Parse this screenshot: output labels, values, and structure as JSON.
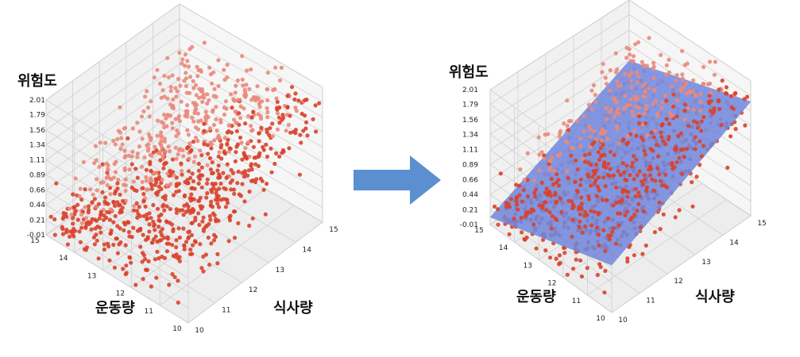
{
  "colors": {
    "point": "#d9412b",
    "point_light": "#e98a7c",
    "plane": "#6f86e2",
    "plane_grid": "#8a8fa8",
    "arrow": "#5b8fcf",
    "pane": "#f1f1f1",
    "grid": "#d0d0d0"
  },
  "arrow_icon": "right-arrow-icon",
  "chart_data": [
    {
      "type": "scatter",
      "zlabel": "위험도",
      "xlabel": "식사량",
      "ylabel": "운동량",
      "z_ticks": [
        "2.01",
        "1.79",
        "1.56",
        "1.34",
        "1.11",
        "0.89",
        "0.66",
        "0.44",
        "0.21",
        "-0.01"
      ],
      "x_ticks": [
        "10",
        "11",
        "12",
        "13",
        "14",
        "15"
      ],
      "y_ticks": [
        "15",
        "14",
        "13",
        "12",
        "11",
        "10"
      ],
      "xlim": [
        10,
        15
      ],
      "ylim": [
        10,
        15
      ],
      "zlim": [
        -0.01,
        2.01
      ],
      "grid": true,
      "series": [
        {
          "description_points": 1000,
          "sample_seed": 7
        }
      ]
    },
    {
      "type": "scatter",
      "overlay": "regression plane",
      "zlabel": "위험도",
      "xlabel": "식사량",
      "ylabel": "운동량",
      "z_ticks": [
        "2.01",
        "1.79",
        "1.56",
        "1.34",
        "1.11",
        "0.89",
        "0.66",
        "0.44",
        "0.21",
        "-0.01"
      ],
      "x_ticks": [
        "10",
        "11",
        "12",
        "13",
        "14",
        "15"
      ],
      "y_ticks": [
        "15",
        "14",
        "13",
        "12",
        "11",
        "10"
      ],
      "xlim": [
        10,
        15
      ],
      "ylim": [
        10,
        15
      ],
      "zlim": [
        -0.01,
        2.01
      ],
      "grid": true,
      "series": [
        {
          "description_points": 1000,
          "sample_seed": 7
        }
      ]
    }
  ]
}
